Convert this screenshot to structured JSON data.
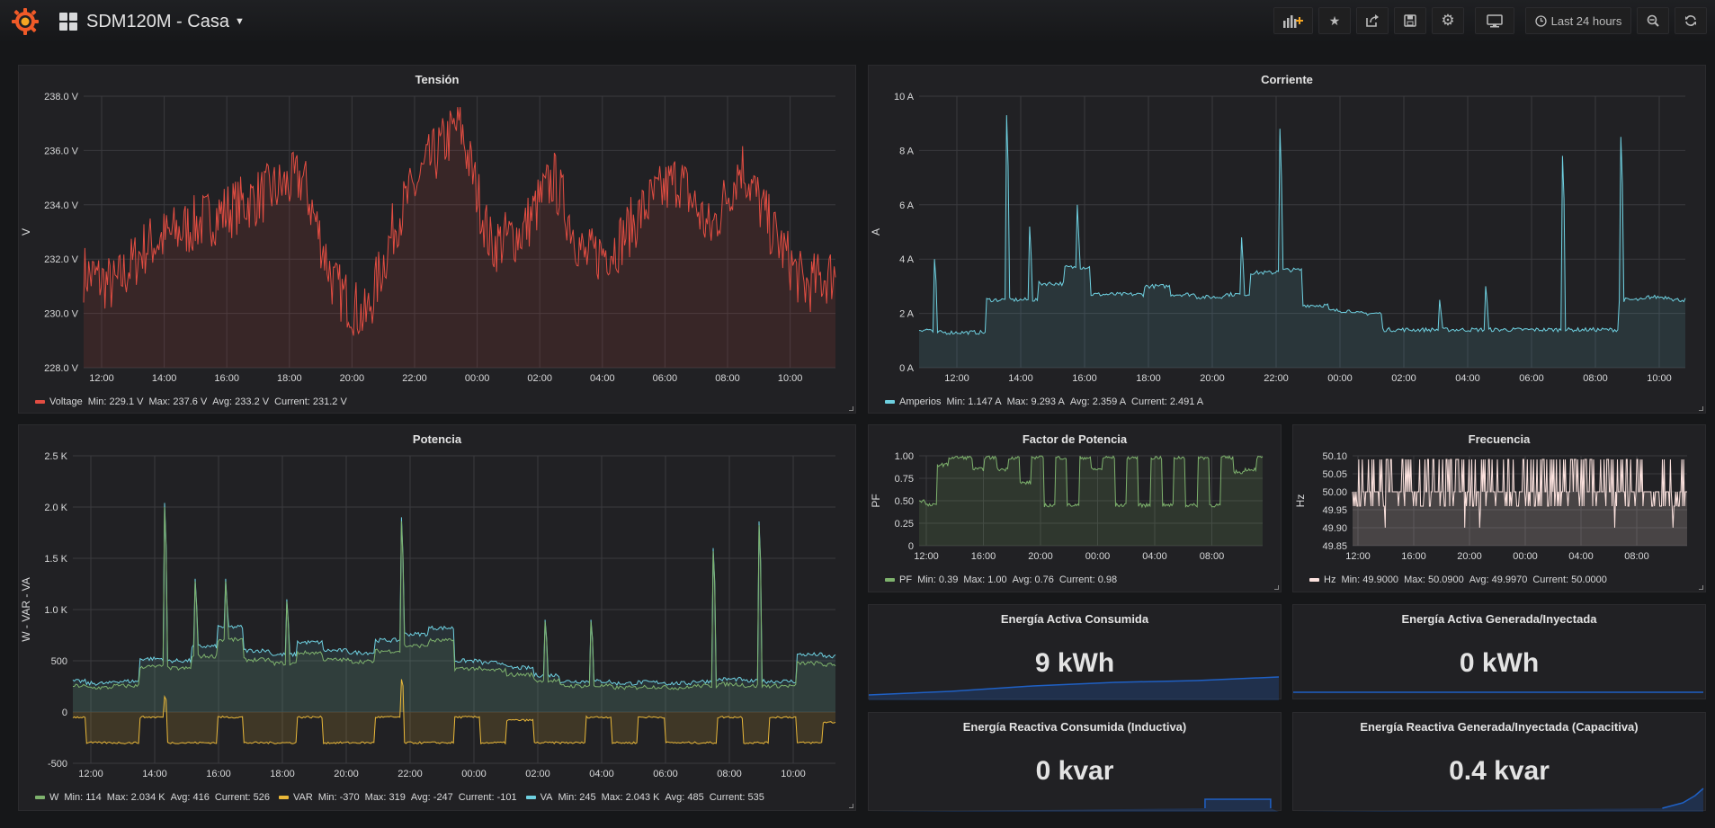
{
  "header": {
    "title": "SDM120M - Casa",
    "time_range_label": "Last 24 hours"
  },
  "panels": {
    "tension": {
      "title": "Tensión",
      "yaxis_label": "V",
      "y_ticks": [
        "238.0 V",
        "236.0 V",
        "234.0 V",
        "232.0 V",
        "230.0 V",
        "228.0 V"
      ],
      "x_ticks": [
        "12:00",
        "14:00",
        "16:00",
        "18:00",
        "20:00",
        "22:00",
        "00:00",
        "02:00",
        "04:00",
        "06:00",
        "08:00",
        "10:00"
      ],
      "legend": {
        "name": "Voltage",
        "min": "Min: 229.1 V",
        "max": "Max: 237.6 V",
        "avg": "Avg: 233.2 V",
        "current": "Current: 231.2 V",
        "color": "#e24d42"
      }
    },
    "corriente": {
      "title": "Corriente",
      "yaxis_label": "A",
      "y_ticks": [
        "10 A",
        "8 A",
        "6 A",
        "4 A",
        "2 A",
        "0 A"
      ],
      "x_ticks": [
        "12:00",
        "14:00",
        "16:00",
        "18:00",
        "20:00",
        "22:00",
        "00:00",
        "02:00",
        "04:00",
        "06:00",
        "08:00",
        "10:00"
      ],
      "legend": {
        "name": "Amperios",
        "min": "Min: 1.147 A",
        "max": "Max: 9.293 A",
        "avg": "Avg: 2.359 A",
        "current": "Current: 2.491 A",
        "color": "#6ed0e0"
      }
    },
    "potencia": {
      "title": "Potencia",
      "yaxis_label": "W - VAR - VA",
      "y_ticks": [
        "2.5 K",
        "2.0 K",
        "1.5 K",
        "1.0 K",
        "500",
        "0",
        "-500"
      ],
      "x_ticks": [
        "12:00",
        "14:00",
        "16:00",
        "18:00",
        "20:00",
        "22:00",
        "00:00",
        "02:00",
        "04:00",
        "06:00",
        "08:00",
        "10:00"
      ],
      "legend": [
        {
          "name": "W",
          "min": "Min: 114",
          "max": "Max: 2.034 K",
          "avg": "Avg: 416",
          "current": "Current: 526",
          "color": "#7eb26d"
        },
        {
          "name": "VAR",
          "min": "Min: -370",
          "max": "Max: 319",
          "avg": "Avg: -247",
          "current": "Current: -101",
          "color": "#eab839"
        },
        {
          "name": "VA",
          "min": "Min: 245",
          "max": "Max: 2.043 K",
          "avg": "Avg: 485",
          "current": "Current: 535",
          "color": "#6ed0e0"
        }
      ]
    },
    "factor": {
      "title": "Factor de Potencia",
      "yaxis_label": "PF",
      "y_ticks": [
        "1.00",
        "0.75",
        "0.50",
        "0.25",
        "0"
      ],
      "x_ticks": [
        "12:00",
        "16:00",
        "20:00",
        "00:00",
        "04:00",
        "08:00"
      ],
      "legend": {
        "name": "PF",
        "min": "Min: 0.39",
        "max": "Max: 1.00",
        "avg": "Avg: 0.76",
        "current": "Current: 0.98",
        "color": "#7eb26d"
      }
    },
    "frecuencia": {
      "title": "Frecuencia",
      "yaxis_label": "Hz",
      "y_ticks": [
        "50.10",
        "50.05",
        "50.00",
        "49.95",
        "49.90",
        "49.85"
      ],
      "x_ticks": [
        "12:00",
        "16:00",
        "20:00",
        "00:00",
        "04:00",
        "08:00"
      ],
      "legend": {
        "name": "Hz",
        "min": "Min: 49.9000",
        "max": "Max: 50.0900",
        "avg": "Avg: 49.9970",
        "current": "Current: 50.0000",
        "color": "#fce2de"
      }
    },
    "stat1": {
      "title": "Energía Activa Consumida",
      "value": "9 kWh"
    },
    "stat2": {
      "title": "Energía Activa Generada/Inyectada",
      "value": "0 kWh"
    },
    "stat3": {
      "title": "Energía Reactiva Consumida (Inductiva)",
      "value": "0 kvar"
    },
    "stat4": {
      "title": "Energía Reactiva Generada/Inyectada (Capacitiva)",
      "value": "0.4 kvar"
    }
  },
  "chart_data": [
    {
      "type": "line",
      "title": "Tensión",
      "ylabel": "V",
      "ylim": [
        228,
        238
      ],
      "x": [
        "12:00",
        "14:00",
        "16:00",
        "18:00",
        "20:00",
        "22:00",
        "00:00",
        "02:00",
        "04:00",
        "06:00",
        "08:00",
        "10:00"
      ],
      "series": [
        {
          "name": "Voltage",
          "values": [
            231.5,
            232.5,
            233.5,
            234.5,
            231.0,
            233.5,
            232.5,
            234.5,
            232.5,
            235.0,
            234.0,
            231.0
          ]
        }
      ]
    },
    {
      "type": "line",
      "title": "Corriente",
      "ylabel": "A",
      "ylim": [
        0,
        10
      ],
      "x": [
        "12:00",
        "14:00",
        "16:00",
        "18:00",
        "20:00",
        "22:00",
        "00:00",
        "02:00",
        "04:00",
        "06:00",
        "08:00",
        "10:00"
      ],
      "series": [
        {
          "name": "Amperios",
          "values": [
            1.3,
            2.4,
            3.0,
            2.7,
            2.6,
            3.5,
            2.0,
            1.4,
            1.4,
            1.4,
            1.4,
            2.5
          ]
        }
      ]
    },
    {
      "type": "line",
      "title": "Potencia",
      "ylabel": "W - VAR - VA",
      "ylim": [
        -500,
        2500
      ],
      "x": [
        "12:00",
        "14:00",
        "16:00",
        "18:00",
        "20:00",
        "22:00",
        "00:00",
        "02:00",
        "04:00",
        "06:00",
        "08:00",
        "10:00"
      ],
      "series": [
        {
          "name": "W",
          "values": [
            200,
            450,
            580,
            520,
            680,
            450,
            300,
            150,
            150,
            150,
            150,
            480
          ]
        },
        {
          "name": "VAR",
          "values": [
            -250,
            -250,
            -250,
            -250,
            -250,
            -250,
            -150,
            -250,
            -250,
            -250,
            -250,
            -150
          ]
        },
        {
          "name": "VA",
          "values": [
            300,
            520,
            680,
            560,
            720,
            520,
            380,
            280,
            280,
            280,
            300,
            540
          ]
        }
      ]
    },
    {
      "type": "line",
      "title": "Factor de Potencia",
      "ylabel": "PF",
      "ylim": [
        0,
        1
      ],
      "x": [
        "12:00",
        "16:00",
        "20:00",
        "00:00",
        "04:00",
        "08:00"
      ],
      "series": [
        {
          "name": "PF",
          "values": [
            0.5,
            0.9,
            0.85,
            0.6,
            0.9,
            0.85
          ]
        }
      ]
    },
    {
      "type": "line",
      "title": "Frecuencia",
      "ylabel": "Hz",
      "ylim": [
        49.85,
        50.1
      ],
      "x": [
        "12:00",
        "16:00",
        "20:00",
        "00:00",
        "04:00",
        "08:00"
      ],
      "series": [
        {
          "name": "Hz",
          "values": [
            50.0,
            50.0,
            50.0,
            50.0,
            50.0,
            50.0
          ]
        }
      ]
    }
  ]
}
